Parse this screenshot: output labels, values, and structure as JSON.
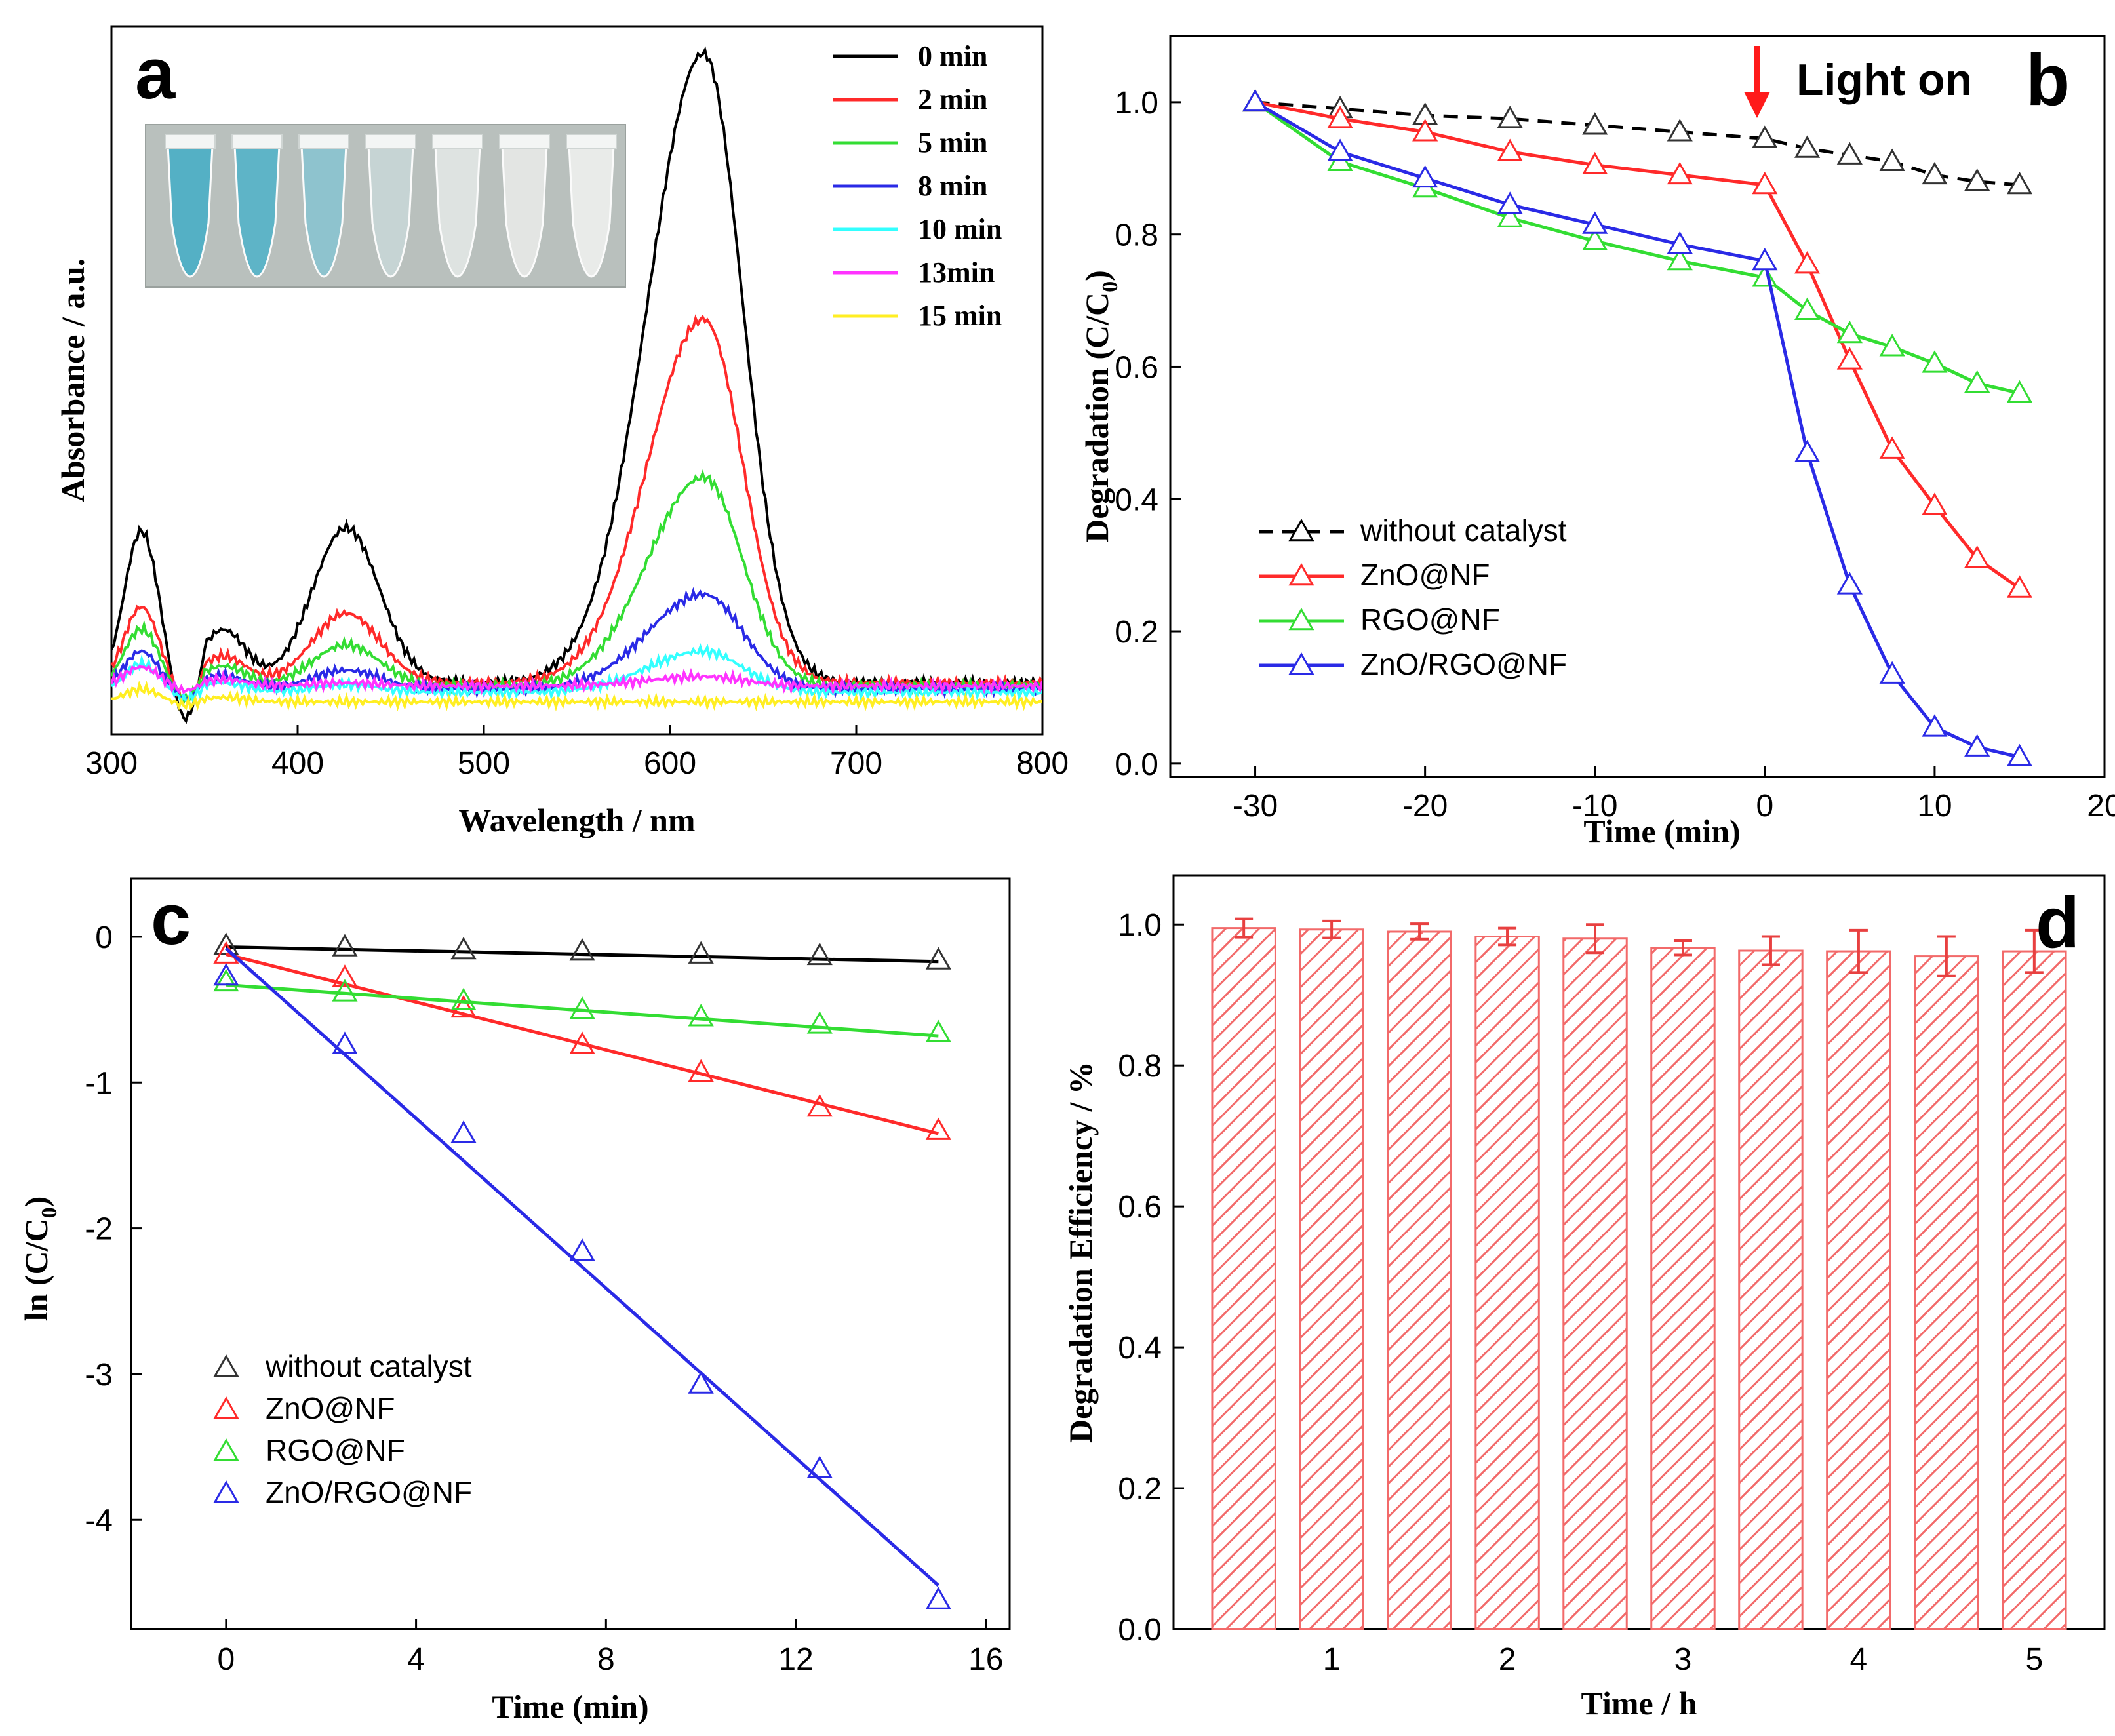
{
  "figure": {
    "panel_labels": [
      "a",
      "b",
      "c",
      "d"
    ]
  },
  "colors": {
    "black": "#000000",
    "red": "#ff2a2a",
    "green": "#33dd33",
    "blue": "#2a2ae6",
    "cyan": "#33ffff",
    "magenta": "#ff33ff",
    "yellow": "#ffee22",
    "bar": "#f26a6a"
  },
  "chart_data": [
    {
      "panel": "a",
      "type": "line",
      "title": "",
      "xlabel": "Wavelength / nm",
      "ylabel": "Absorbance / a.u.",
      "xlim": [
        300,
        800
      ],
      "ylim": [
        0,
        1
      ],
      "xticks": [
        300,
        400,
        500,
        600,
        700,
        800
      ],
      "inset": "photo of seven vials, blue colour fading from left to right",
      "series": [
        {
          "name": "0 min",
          "color": "#000000",
          "peak600": 0.995,
          "peak425": 0.245,
          "peak315": 0.24,
          "base": 0.045
        },
        {
          "name": "2 min",
          "color": "#ff2a2a",
          "peak600": 0.575,
          "peak425": 0.11,
          "peak315": 0.12,
          "base": 0.045
        },
        {
          "name": "5 min",
          "color": "#33dd33",
          "peak600": 0.33,
          "peak425": 0.065,
          "peak315": 0.09,
          "base": 0.04
        },
        {
          "name": "8 min",
          "color": "#2a2ae6",
          "peak600": 0.15,
          "peak425": 0.03,
          "peak315": 0.06,
          "base": 0.035
        },
        {
          "name": "10 min",
          "color": "#33ffff",
          "peak600": 0.065,
          "peak425": 0.012,
          "peak315": 0.045,
          "base": 0.03
        },
        {
          "name": "13min",
          "color": "#ff33ff",
          "peak600": 0.015,
          "peak425": 0.005,
          "peak315": 0.03,
          "base": 0.04
        },
        {
          "name": "15 min",
          "color": "#ffee22",
          "peak600": 0.0,
          "peak425": 0.0,
          "peak315": 0.02,
          "base": 0.015
        }
      ]
    },
    {
      "panel": "b",
      "type": "line",
      "xlabel": "Time (min)",
      "ylabel": "Degradation (C/C",
      "ylabel_sub": "0",
      "ylabel_end": ")",
      "xlim": [
        -35,
        20
      ],
      "ylim": [
        -0.02,
        1.1
      ],
      "xticks": [
        -30,
        -20,
        -10,
        0,
        10,
        20
      ],
      "yticks": [
        0.0,
        0.2,
        0.4,
        0.6,
        0.8,
        1.0
      ],
      "annotation": "Light on",
      "annotation_x": 0,
      "x": [
        -30,
        -25,
        -20,
        -15,
        -10,
        -5,
        0,
        2.5,
        5,
        7.5,
        10,
        12.5,
        15
      ],
      "series": [
        {
          "name": "without catalyst",
          "color": "#000000",
          "dashed": true,
          "values": [
            1.0,
            0.99,
            0.98,
            0.975,
            0.965,
            0.955,
            0.945,
            0.93,
            0.92,
            0.91,
            0.89,
            0.88,
            0.875
          ]
        },
        {
          "name": "ZnO@NF",
          "color": "#ff2a2a",
          "dashed": false,
          "values": [
            1.0,
            0.975,
            0.955,
            0.925,
            0.905,
            0.89,
            0.875,
            0.755,
            0.61,
            0.475,
            0.39,
            0.31,
            0.265
          ]
        },
        {
          "name": "RGO@NF",
          "color": "#33dd33",
          "dashed": false,
          "values": [
            1.0,
            0.91,
            0.87,
            0.825,
            0.79,
            0.76,
            0.735,
            0.685,
            0.65,
            0.63,
            0.605,
            0.575,
            0.56
          ]
        },
        {
          "name": "ZnO/RGO@NF",
          "color": "#2a2ae6",
          "dashed": false,
          "values": [
            1.0,
            0.925,
            0.885,
            0.845,
            0.815,
            0.785,
            0.76,
            0.47,
            0.27,
            0.135,
            0.055,
            0.025,
            0.01
          ]
        }
      ]
    },
    {
      "panel": "c",
      "type": "scatter",
      "xlabel": "Time (min)",
      "ylabel": "ln (C/C",
      "ylabel_sub": "0",
      "ylabel_end": ")",
      "xlim": [
        -2,
        16.5
      ],
      "ylim": [
        -4.75,
        0.4
      ],
      "xticks": [
        0,
        4,
        8,
        12,
        16
      ],
      "yticks": [
        0,
        -1,
        -2,
        -3,
        -4
      ],
      "x": [
        0,
        2.5,
        5,
        7.5,
        10,
        12.5,
        15
      ],
      "series": [
        {
          "name": "without catalyst",
          "color": "#000000",
          "values": [
            -0.06,
            -0.07,
            -0.09,
            -0.1,
            -0.12,
            -0.13,
            -0.16
          ],
          "fit": [
            [
              0,
              -0.07
            ],
            [
              15,
              -0.17
            ]
          ]
        },
        {
          "name": "ZnO@NF",
          "color": "#ff2a2a",
          "values": [
            -0.12,
            -0.28,
            -0.49,
            -0.74,
            -0.93,
            -1.17,
            -1.33
          ],
          "fit": [
            [
              0,
              -0.12
            ],
            [
              15,
              -1.35
            ]
          ]
        },
        {
          "name": "RGO@NF",
          "color": "#33dd33",
          "values": [
            -0.31,
            -0.38,
            -0.44,
            -0.5,
            -0.55,
            -0.6,
            -0.66
          ],
          "fit": [
            [
              0,
              -0.33
            ],
            [
              15,
              -0.68
            ]
          ]
        },
        {
          "name": "ZnO/RGO@NF",
          "color": "#2a2ae6",
          "values": [
            -0.27,
            -0.74,
            -1.35,
            -2.16,
            -3.07,
            -3.65,
            -4.55
          ],
          "fit": [
            [
              0,
              -0.08
            ],
            [
              15,
              -4.45
            ]
          ]
        }
      ]
    },
    {
      "panel": "d",
      "type": "bar",
      "xlabel": "Time / h",
      "ylabel": "Degradation Efficiency / %",
      "xlim": [
        0.1,
        5.4
      ],
      "ylim": [
        0,
        1.07
      ],
      "xticks": [
        1,
        2,
        3,
        4,
        5
      ],
      "yticks": [
        0.0,
        0.2,
        0.4,
        0.6,
        0.8,
        1.0
      ],
      "categories": [
        0.5,
        1,
        1.5,
        2,
        2.5,
        3,
        3.5,
        4,
        4.5,
        5
      ],
      "values": [
        0.995,
        0.993,
        0.99,
        0.983,
        0.98,
        0.967,
        0.963,
        0.962,
        0.955,
        0.962
      ],
      "errors": [
        0.013,
        0.012,
        0.011,
        0.012,
        0.02,
        0.01,
        0.02,
        0.03,
        0.028,
        0.03
      ]
    }
  ]
}
